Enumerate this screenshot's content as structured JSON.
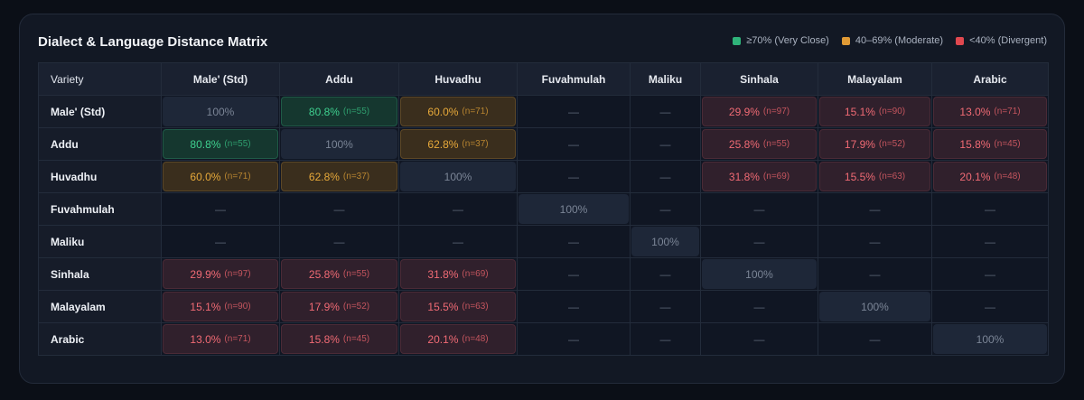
{
  "title": "Dialect & Language Distance Matrix",
  "legend": [
    {
      "label": "≥70% (Very Close)",
      "color": "#2fb37a"
    },
    {
      "label": "40–69% (Moderate)",
      "color": "#e09a35"
    },
    {
      "label": "<40% (Divergent)",
      "color": "#e0484f"
    }
  ],
  "chart_data": {
    "type": "heatmap",
    "corner_label": "Variety",
    "columns": [
      "Male' (Std)",
      "Addu",
      "Huvadhu",
      "Fuvahmulah",
      "Maliku",
      "Sinhala",
      "Malayalam",
      "Arabic"
    ],
    "rows": [
      {
        "label": "Male' (Std)",
        "cells": [
          {
            "value": "100%",
            "n": ""
          },
          {
            "value": "80.8%",
            "n": "(n=55)"
          },
          {
            "value": "60.0%",
            "n": "(n=71)"
          },
          {
            "value": "—",
            "n": ""
          },
          {
            "value": "—",
            "n": ""
          },
          {
            "value": "29.9%",
            "n": "(n=97)"
          },
          {
            "value": "15.1%",
            "n": "(n=90)"
          },
          {
            "value": "13.0%",
            "n": "(n=71)"
          }
        ]
      },
      {
        "label": "Addu",
        "cells": [
          {
            "value": "80.8%",
            "n": "(n=55)"
          },
          {
            "value": "100%",
            "n": ""
          },
          {
            "value": "62.8%",
            "n": "(n=37)"
          },
          {
            "value": "—",
            "n": ""
          },
          {
            "value": "—",
            "n": ""
          },
          {
            "value": "25.8%",
            "n": "(n=55)"
          },
          {
            "value": "17.9%",
            "n": "(n=52)"
          },
          {
            "value": "15.8%",
            "n": "(n=45)"
          }
        ]
      },
      {
        "label": "Huvadhu",
        "cells": [
          {
            "value": "60.0%",
            "n": "(n=71)"
          },
          {
            "value": "62.8%",
            "n": "(n=37)"
          },
          {
            "value": "100%",
            "n": ""
          },
          {
            "value": "—",
            "n": ""
          },
          {
            "value": "—",
            "n": ""
          },
          {
            "value": "31.8%",
            "n": "(n=69)"
          },
          {
            "value": "15.5%",
            "n": "(n=63)"
          },
          {
            "value": "20.1%",
            "n": "(n=48)"
          }
        ]
      },
      {
        "label": "Fuvahmulah",
        "cells": [
          {
            "value": "—",
            "n": ""
          },
          {
            "value": "—",
            "n": ""
          },
          {
            "value": "—",
            "n": ""
          },
          {
            "value": "100%",
            "n": ""
          },
          {
            "value": "—",
            "n": ""
          },
          {
            "value": "—",
            "n": ""
          },
          {
            "value": "—",
            "n": ""
          },
          {
            "value": "—",
            "n": ""
          }
        ]
      },
      {
        "label": "Maliku",
        "cells": [
          {
            "value": "—",
            "n": ""
          },
          {
            "value": "—",
            "n": ""
          },
          {
            "value": "—",
            "n": ""
          },
          {
            "value": "—",
            "n": ""
          },
          {
            "value": "100%",
            "n": ""
          },
          {
            "value": "—",
            "n": ""
          },
          {
            "value": "—",
            "n": ""
          },
          {
            "value": "—",
            "n": ""
          }
        ]
      },
      {
        "label": "Sinhala",
        "cells": [
          {
            "value": "29.9%",
            "n": "(n=97)"
          },
          {
            "value": "25.8%",
            "n": "(n=55)"
          },
          {
            "value": "31.8%",
            "n": "(n=69)"
          },
          {
            "value": "—",
            "n": ""
          },
          {
            "value": "—",
            "n": ""
          },
          {
            "value": "100%",
            "n": ""
          },
          {
            "value": "—",
            "n": ""
          },
          {
            "value": "—",
            "n": ""
          }
        ]
      },
      {
        "label": "Malayalam",
        "cells": [
          {
            "value": "15.1%",
            "n": "(n=90)"
          },
          {
            "value": "17.9%",
            "n": "(n=52)"
          },
          {
            "value": "15.5%",
            "n": "(n=63)"
          },
          {
            "value": "—",
            "n": ""
          },
          {
            "value": "—",
            "n": ""
          },
          {
            "value": "—",
            "n": ""
          },
          {
            "value": "100%",
            "n": ""
          },
          {
            "value": "—",
            "n": ""
          }
        ]
      },
      {
        "label": "Arabic",
        "cells": [
          {
            "value": "13.0%",
            "n": "(n=71)"
          },
          {
            "value": "15.8%",
            "n": "(n=45)"
          },
          {
            "value": "20.1%",
            "n": "(n=48)"
          },
          {
            "value": "—",
            "n": ""
          },
          {
            "value": "—",
            "n": ""
          },
          {
            "value": "—",
            "n": ""
          },
          {
            "value": "—",
            "n": ""
          },
          {
            "value": "100%",
            "n": ""
          }
        ]
      }
    ]
  }
}
